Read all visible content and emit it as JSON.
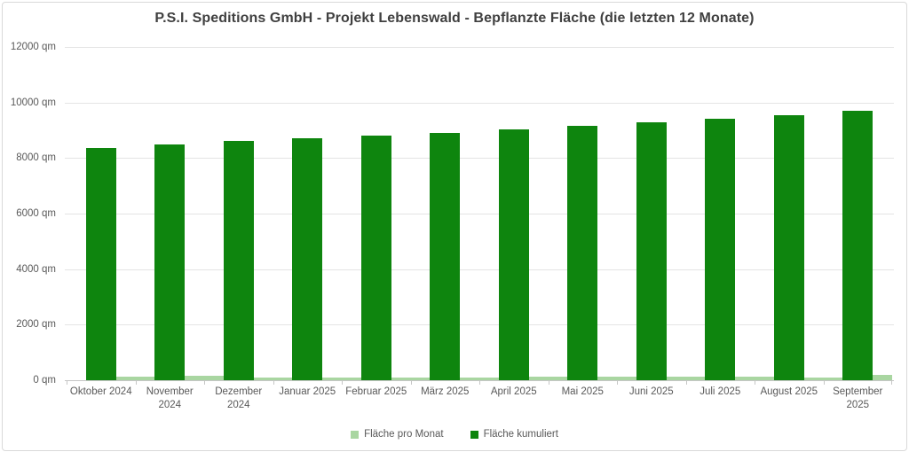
{
  "chart_data": {
    "type": "bar",
    "title": "P.S.I. Speditions GmbH - Projekt Lebenswald - Bepflanzte Fläche (die letzten 12 Monate)",
    "categories": [
      "Oktober 2024",
      "November 2024",
      "Dezember 2024",
      "Januar 2025",
      "Februar 2025",
      "März 2025",
      "April 2025",
      "Mai 2025",
      "Juni 2025",
      "Juli 2025",
      "August 2025",
      "September 2025"
    ],
    "series": [
      {
        "name": "Fläche pro Monat",
        "color": "#a9d6a1",
        "values": [
          130,
          150,
          110,
          90,
          110,
          90,
          140,
          130,
          120,
          140,
          100,
          180
        ]
      },
      {
        "name": "Fläche kumuliert",
        "color": "#0e850e",
        "values": [
          8350,
          8500,
          8610,
          8700,
          8810,
          8900,
          9040,
          9170,
          9290,
          9430,
          9530,
          9710
        ]
      }
    ],
    "ylabel_unit": "qm",
    "ylim": [
      0,
      12000
    ],
    "yticks": [
      {
        "value": 0,
        "label": "0 qm"
      },
      {
        "value": 2000,
        "label": "2000 qm"
      },
      {
        "value": 4000,
        "label": "4000 qm"
      },
      {
        "value": 6000,
        "label": "6000 qm"
      },
      {
        "value": 8000,
        "label": "8000 qm"
      },
      {
        "value": 10000,
        "label": "10000 qm"
      },
      {
        "value": 12000,
        "label": "12000 qm"
      }
    ],
    "grid": true,
    "legend_position": "bottom"
  }
}
